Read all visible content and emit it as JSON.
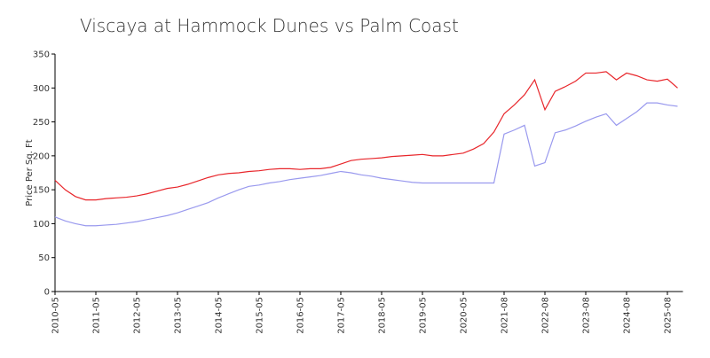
{
  "chart_data": {
    "type": "line",
    "title": "Viscaya at Hammock Dunes vs Palm Coast",
    "y_label": "Price Per Sq. Ft",
    "categories": [
      "2010-05",
      null,
      null,
      null,
      "2011-05",
      null,
      null,
      null,
      "2012-05",
      null,
      null,
      null,
      "2013-05",
      null,
      null,
      null,
      "2014-05",
      null,
      null,
      null,
      "2015-05",
      null,
      null,
      null,
      "2016-05",
      null,
      null,
      null,
      "2017-05",
      null,
      null,
      null,
      "2018-05",
      null,
      null,
      null,
      "2019-05",
      null,
      null,
      null,
      "2020-05",
      null,
      null,
      null,
      "2021-08",
      null,
      null,
      null,
      "2022-08",
      null,
      null,
      null,
      "2023-08",
      null,
      null,
      null,
      "2024-08",
      null,
      null,
      null,
      "2025-08",
      null
    ],
    "series": [
      {
        "color": "#e8262b",
        "values": [
          164,
          150,
          140,
          135,
          135,
          137,
          138,
          139,
          141,
          144,
          148,
          152,
          154,
          158,
          163,
          168,
          172,
          174,
          175,
          177,
          178,
          180,
          181,
          181,
          180,
          181,
          181,
          183,
          188,
          193,
          195,
          196,
          197,
          199,
          200,
          201,
          202,
          200,
          200,
          202,
          204,
          210,
          218,
          235,
          262,
          275,
          290,
          312,
          268,
          295,
          302,
          310,
          322,
          322,
          324,
          312,
          322,
          318,
          312,
          310,
          313,
          300
        ]
      },
      {
        "color": "#9999ee",
        "values": [
          110,
          104,
          100,
          97,
          97,
          98,
          99,
          101,
          103,
          106,
          109,
          112,
          116,
          121,
          126,
          131,
          138,
          144,
          150,
          155,
          157,
          160,
          162,
          165,
          167,
          169,
          171,
          174,
          177,
          175,
          172,
          170,
          167,
          165,
          163,
          161,
          160,
          160,
          160,
          160,
          160,
          160,
          160,
          160,
          232,
          238,
          245,
          185,
          190,
          234,
          238,
          244,
          251,
          257,
          262,
          245,
          255,
          265,
          278,
          278,
          275,
          273
        ]
      }
    ],
    "ylim": [
      0,
      350
    ],
    "yticks": [
      0,
      50,
      100,
      150,
      200,
      250,
      300,
      350
    ]
  }
}
